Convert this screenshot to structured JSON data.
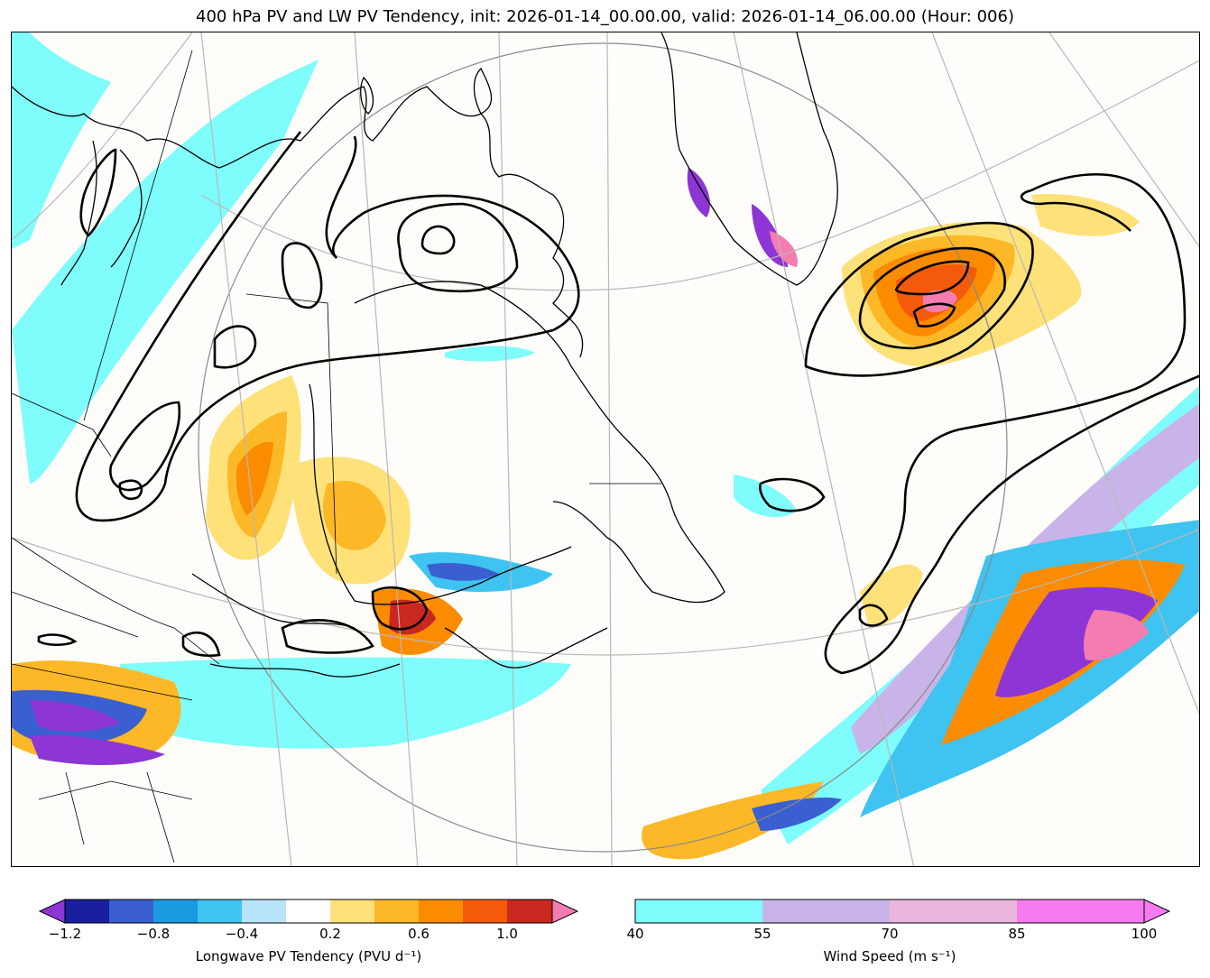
{
  "title": "400 hPa PV and LW PV Tendency, init: 2026-01-14_00.00.00, valid: 2026-01-14_06.00.00 (Hour: 006)",
  "pv_colorbar": {
    "label": "Longwave PV Tendency (PVU d⁻¹)",
    "tick_labels": [
      "−1.2",
      "−0.8",
      "−0.4",
      "0.2",
      "0.6",
      "1.0"
    ],
    "colors": [
      "#8e35d6",
      "#1a1f9e",
      "#3a5fd0",
      "#1a9be0",
      "#3fc3f0",
      "#b7e4fb",
      "#ffffff",
      "#ffe17a",
      "#fdb827",
      "#fb8c00",
      "#f45a0a",
      "#c8281f",
      "#f47cb0"
    ]
  },
  "wind_colorbar": {
    "label": "Wind Speed (m s⁻¹)",
    "tick_labels": [
      "40",
      "55",
      "70",
      "85",
      "100"
    ],
    "colors": [
      "#7ffcfc",
      "#c8b4e8",
      "#eab6e0",
      "#f77bf0"
    ]
  }
}
